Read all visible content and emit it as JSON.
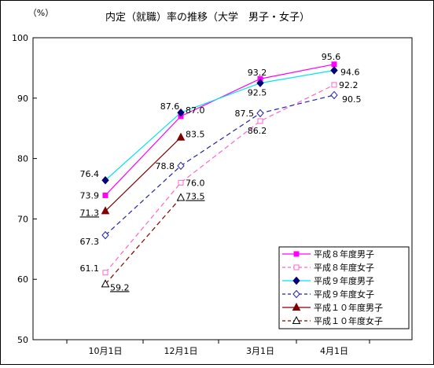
{
  "chart_data": {
    "type": "line",
    "title": "内定（就職）率の推移（大学　男子・女子）",
    "ylabel": "（%）",
    "xlabel": "",
    "categories": [
      "10月1日",
      "12月1日",
      "3月1日",
      "4月1日"
    ],
    "ylim": [
      50,
      100
    ],
    "yticks": [
      "50",
      "60",
      "70",
      "80",
      "90",
      "100"
    ],
    "grid": false,
    "legend_position": "bottom-right",
    "series": [
      {
        "name": "平成８年度男子",
        "values": [
          73.9,
          87.0,
          93.2,
          95.6
        ],
        "labels": [
          "73.9",
          "87.0",
          "93.2",
          "95.6"
        ],
        "color": "#ff00ff",
        "dash": "solid",
        "marker": "square-filled"
      },
      {
        "name": "平成８年度女子",
        "values": [
          61.1,
          76.0,
          86.2,
          92.2
        ],
        "labels": [
          "61.1",
          "76.0",
          "86.2",
          "92.2"
        ],
        "color": "#ff66cc",
        "dash": "dashed",
        "marker": "square-open"
      },
      {
        "name": "平成９年度男子",
        "values": [
          76.4,
          87.6,
          92.5,
          94.6
        ],
        "labels": [
          "76.4",
          "87.6",
          "92.5",
          "94.6"
        ],
        "color": "#00e5ee",
        "dash": "solid",
        "marker": "diamond-filled"
      },
      {
        "name": "平成９年度女子",
        "values": [
          67.3,
          78.8,
          87.5,
          90.5
        ],
        "labels": [
          "67.3",
          "78.8",
          "87.5",
          "90.5"
        ],
        "color": "#2222aa",
        "dash": "dashed",
        "marker": "diamond-open"
      },
      {
        "name": "平成１０年度男子",
        "values": [
          71.3,
          83.5,
          null,
          null
        ],
        "labels": [
          "71.3",
          "83.5",
          null,
          null
        ],
        "color": "#800000",
        "dash": "solid",
        "marker": "triangle-filled"
      },
      {
        "name": "平成１０年度女子",
        "values": [
          59.2,
          73.5,
          null,
          null
        ],
        "labels": [
          "59.2",
          "73.5",
          null,
          null
        ],
        "color": "#800000",
        "dash": "dashed",
        "marker": "triangle-open"
      }
    ],
    "underlined_labels": [
      "71.3",
      "59.2",
      "73.5"
    ]
  }
}
